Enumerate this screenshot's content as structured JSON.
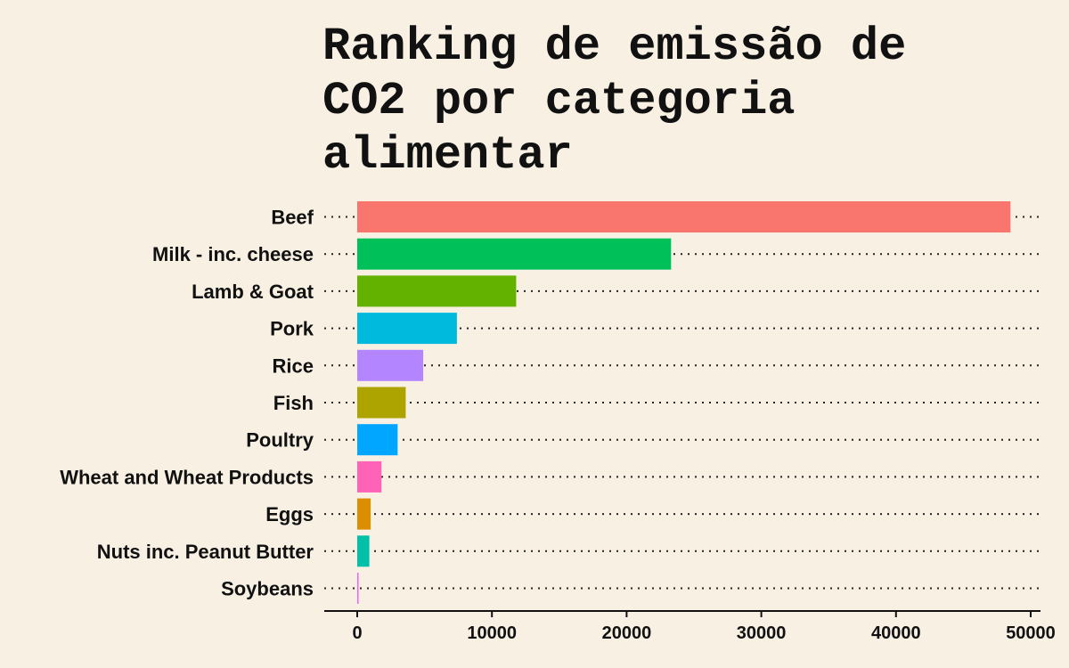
{
  "chart_data": {
    "type": "bar",
    "orientation": "horizontal",
    "title": "Ranking de emissão de CO2 por categoria alimentar",
    "title_lines": [
      "Ranking de emissão de",
      "CO2 por categoria",
      "alimentar"
    ],
    "xlabel": "",
    "ylabel": "",
    "xlim": [
      0,
      50000
    ],
    "x_ticks": [
      0,
      10000,
      20000,
      30000,
      40000,
      50000
    ],
    "grid": "dotted horizontal lines per category",
    "legend": "none",
    "categories": [
      "Beef",
      "Milk - inc. cheese",
      "Lamb & Goat",
      "Pork",
      "Rice",
      "Fish",
      "Poultry",
      "Wheat and Wheat Products",
      "Eggs",
      "Nuts inc. Peanut Butter",
      "Soybeans"
    ],
    "values": [
      48500,
      23300,
      11800,
      7400,
      4900,
      3600,
      3000,
      1800,
      1000,
      900,
      100
    ],
    "colors": [
      "#f8766d",
      "#00c05a",
      "#64b200",
      "#00bade",
      "#b385ff",
      "#ada400",
      "#00a6ff",
      "#ff63b6",
      "#db8e00",
      "#00c1a7",
      "#ef67eb"
    ],
    "background": "#f7f0e3"
  }
}
